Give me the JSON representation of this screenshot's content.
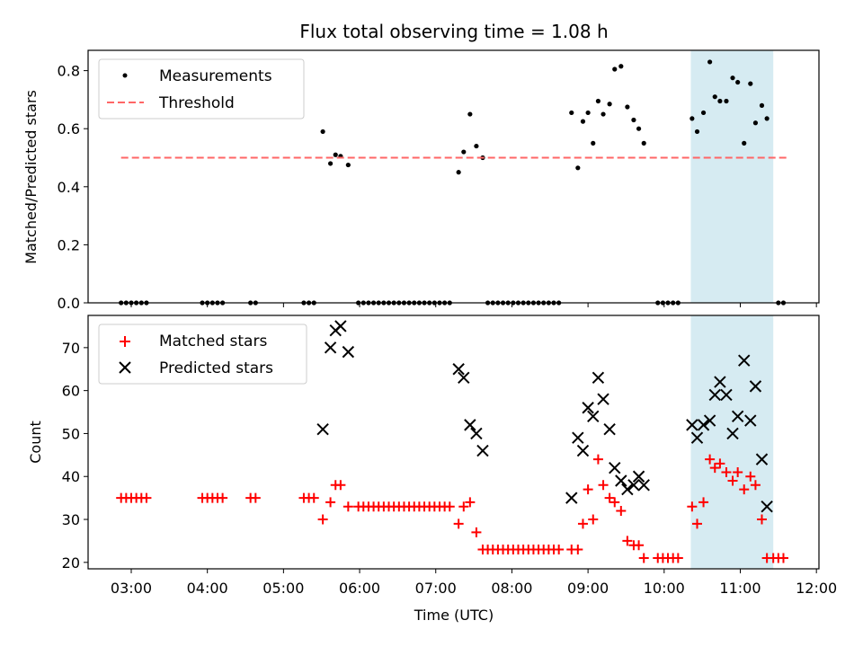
{
  "chart_data": [
    {
      "type": "scatter",
      "title": "Flux total observing time = 1.08 h",
      "xlabel": "",
      "ylabel": "Matched/Predicted stars",
      "xlim": [
        "02:26",
        "12:02"
      ],
      "ylim": [
        0,
        0.87
      ],
      "xticks": [
        "03:00",
        "04:00",
        "05:00",
        "06:00",
        "07:00",
        "08:00",
        "09:00",
        "10:00",
        "11:00",
        "12:00"
      ],
      "yticks": [
        "0.0",
        "0.2",
        "0.4",
        "0.6",
        "0.8"
      ],
      "legend": "upper-left",
      "highlight_span": [
        "10:21",
        "11:26"
      ],
      "highlight_color": "#add8e6",
      "series": [
        {
          "name": "Measurements",
          "marker": "dot",
          "color": "#000000",
          "points": [
            [
              "02:52",
              0
            ],
            [
              "02:56",
              0
            ],
            [
              "03:00",
              0
            ],
            [
              "03:04",
              0
            ],
            [
              "03:08",
              0
            ],
            [
              "03:12",
              0
            ],
            [
              "03:56",
              0
            ],
            [
              "04:00",
              0
            ],
            [
              "04:04",
              0
            ],
            [
              "04:08",
              0
            ],
            [
              "04:12",
              0
            ],
            [
              "04:34",
              0
            ],
            [
              "04:38",
              0
            ],
            [
              "05:16",
              0
            ],
            [
              "05:20",
              0
            ],
            [
              "05:24",
              0
            ],
            [
              "05:31",
              0.59
            ],
            [
              "05:37",
              0.48
            ],
            [
              "05:41",
              0.51
            ],
            [
              "05:45",
              0.505
            ],
            [
              "05:51",
              0.475
            ],
            [
              "05:59",
              0
            ],
            [
              "06:03",
              0
            ],
            [
              "06:07",
              0
            ],
            [
              "06:11",
              0
            ],
            [
              "06:15",
              0
            ],
            [
              "06:19",
              0
            ],
            [
              "06:23",
              0
            ],
            [
              "06:27",
              0
            ],
            [
              "06:31",
              0
            ],
            [
              "06:35",
              0
            ],
            [
              "06:39",
              0
            ],
            [
              "06:43",
              0
            ],
            [
              "06:47",
              0
            ],
            [
              "06:51",
              0
            ],
            [
              "06:55",
              0
            ],
            [
              "06:59",
              0
            ],
            [
              "07:03",
              0
            ],
            [
              "07:07",
              0
            ],
            [
              "07:11",
              0
            ],
            [
              "07:18",
              0.45
            ],
            [
              "07:22",
              0.52
            ],
            [
              "07:27",
              0.65
            ],
            [
              "07:32",
              0.54
            ],
            [
              "07:37",
              0.5
            ],
            [
              "07:41",
              0
            ],
            [
              "07:45",
              0
            ],
            [
              "07:49",
              0
            ],
            [
              "07:53",
              0
            ],
            [
              "07:57",
              0
            ],
            [
              "08:01",
              0
            ],
            [
              "08:05",
              0
            ],
            [
              "08:09",
              0
            ],
            [
              "08:13",
              0
            ],
            [
              "08:17",
              0
            ],
            [
              "08:21",
              0
            ],
            [
              "08:25",
              0
            ],
            [
              "08:29",
              0
            ],
            [
              "08:33",
              0
            ],
            [
              "08:37",
              0
            ],
            [
              "08:47",
              0.655
            ],
            [
              "08:52",
              0.465
            ],
            [
              "08:56",
              0.625
            ],
            [
              "09:00",
              0.655
            ],
            [
              "09:04",
              0.55
            ],
            [
              "09:08",
              0.695
            ],
            [
              "09:12",
              0.65
            ],
            [
              "09:17",
              0.685
            ],
            [
              "09:21",
              0.805
            ],
            [
              "09:26",
              0.815
            ],
            [
              "09:31",
              0.675
            ],
            [
              "09:36",
              0.63
            ],
            [
              "09:40",
              0.6
            ],
            [
              "09:44",
              0.55
            ],
            [
              "09:55",
              0
            ],
            [
              "09:59",
              0
            ],
            [
              "10:03",
              0
            ],
            [
              "10:07",
              0
            ],
            [
              "10:11",
              0
            ],
            [
              "10:22",
              0.635
            ],
            [
              "10:26",
              0.59
            ],
            [
              "10:31",
              0.655
            ],
            [
              "10:36",
              0.83
            ],
            [
              "10:40",
              0.71
            ],
            [
              "10:44",
              0.695
            ],
            [
              "10:49",
              0.695
            ],
            [
              "10:54",
              0.775
            ],
            [
              "10:58",
              0.76
            ],
            [
              "11:03",
              0.55
            ],
            [
              "11:08",
              0.755
            ],
            [
              "11:12",
              0.62
            ],
            [
              "11:17",
              0.68
            ],
            [
              "11:21",
              0.635
            ],
            [
              "11:30",
              0
            ],
            [
              "11:34",
              0
            ]
          ]
        },
        {
          "name": "Threshold",
          "style": "dashed",
          "color": "#ff6666",
          "points": [
            [
              "02:52",
              0.5
            ],
            [
              "11:38",
              0.5
            ]
          ]
        }
      ]
    },
    {
      "type": "scatter",
      "title": "",
      "xlabel": "Time (UTC)",
      "ylabel": "Count",
      "xlim": [
        "02:26",
        "12:02"
      ],
      "ylim": [
        18.5,
        77.5
      ],
      "xticks": [
        "03:00",
        "04:00",
        "05:00",
        "06:00",
        "07:00",
        "08:00",
        "09:00",
        "10:00",
        "11:00",
        "12:00"
      ],
      "yticks": [
        "20",
        "30",
        "40",
        "50",
        "60",
        "70"
      ],
      "legend": "upper-left",
      "highlight_span": [
        "10:21",
        "11:26"
      ],
      "highlight_color": "#add8e6",
      "series": [
        {
          "name": "Matched stars",
          "marker": "plus",
          "color": "#ff0000",
          "points": [
            [
              "02:52",
              35
            ],
            [
              "02:56",
              35
            ],
            [
              "03:00",
              35
            ],
            [
              "03:04",
              35
            ],
            [
              "03:08",
              35
            ],
            [
              "03:12",
              35
            ],
            [
              "03:56",
              35
            ],
            [
              "04:00",
              35
            ],
            [
              "04:04",
              35
            ],
            [
              "04:08",
              35
            ],
            [
              "04:12",
              35
            ],
            [
              "04:34",
              35
            ],
            [
              "04:38",
              35
            ],
            [
              "05:16",
              35
            ],
            [
              "05:20",
              35
            ],
            [
              "05:24",
              35
            ],
            [
              "05:31",
              30
            ],
            [
              "05:37",
              34
            ],
            [
              "05:41",
              38
            ],
            [
              "05:45",
              38
            ],
            [
              "05:51",
              33
            ],
            [
              "05:59",
              33
            ],
            [
              "06:03",
              33
            ],
            [
              "06:07",
              33
            ],
            [
              "06:11",
              33
            ],
            [
              "06:15",
              33
            ],
            [
              "06:19",
              33
            ],
            [
              "06:23",
              33
            ],
            [
              "06:27",
              33
            ],
            [
              "06:31",
              33
            ],
            [
              "06:35",
              33
            ],
            [
              "06:39",
              33
            ],
            [
              "06:43",
              33
            ],
            [
              "06:47",
              33
            ],
            [
              "06:51",
              33
            ],
            [
              "06:55",
              33
            ],
            [
              "06:59",
              33
            ],
            [
              "07:03",
              33
            ],
            [
              "07:07",
              33
            ],
            [
              "07:11",
              33
            ],
            [
              "07:18",
              29
            ],
            [
              "07:22",
              33
            ],
            [
              "07:27",
              34
            ],
            [
              "07:32",
              27
            ],
            [
              "07:37",
              23
            ],
            [
              "07:41",
              23
            ],
            [
              "07:45",
              23
            ],
            [
              "07:49",
              23
            ],
            [
              "07:53",
              23
            ],
            [
              "07:57",
              23
            ],
            [
              "08:01",
              23
            ],
            [
              "08:05",
              23
            ],
            [
              "08:09",
              23
            ],
            [
              "08:13",
              23
            ],
            [
              "08:17",
              23
            ],
            [
              "08:21",
              23
            ],
            [
              "08:25",
              23
            ],
            [
              "08:29",
              23
            ],
            [
              "08:33",
              23
            ],
            [
              "08:37",
              23
            ],
            [
              "08:47",
              23
            ],
            [
              "08:52",
              23
            ],
            [
              "08:56",
              29
            ],
            [
              "09:00",
              37
            ],
            [
              "09:04",
              30
            ],
            [
              "09:08",
              44
            ],
            [
              "09:12",
              38
            ],
            [
              "09:17",
              35
            ],
            [
              "09:21",
              34
            ],
            [
              "09:26",
              32
            ],
            [
              "09:31",
              25
            ],
            [
              "09:36",
              24
            ],
            [
              "09:40",
              24
            ],
            [
              "09:44",
              21
            ],
            [
              "09:55",
              21
            ],
            [
              "09:59",
              21
            ],
            [
              "10:03",
              21
            ],
            [
              "10:07",
              21
            ],
            [
              "10:11",
              21
            ],
            [
              "10:22",
              33
            ],
            [
              "10:26",
              29
            ],
            [
              "10:31",
              34
            ],
            [
              "10:36",
              44
            ],
            [
              "10:40",
              42
            ],
            [
              "10:44",
              43
            ],
            [
              "10:49",
              41
            ],
            [
              "10:54",
              39
            ],
            [
              "10:58",
              41
            ],
            [
              "11:03",
              37
            ],
            [
              "11:08",
              40
            ],
            [
              "11:12",
              38
            ],
            [
              "11:17",
              30
            ],
            [
              "11:21",
              21
            ],
            [
              "11:26",
              21
            ],
            [
              "11:30",
              21
            ],
            [
              "11:34",
              21
            ]
          ]
        },
        {
          "name": "Predicted stars",
          "marker": "x",
          "color": "#000000",
          "points": [
            [
              "05:31",
              51
            ],
            [
              "05:37",
              70
            ],
            [
              "05:41",
              74
            ],
            [
              "05:45",
              75
            ],
            [
              "05:51",
              69
            ],
            [
              "07:18",
              65
            ],
            [
              "07:22",
              63
            ],
            [
              "07:27",
              52
            ],
            [
              "07:32",
              50
            ],
            [
              "07:37",
              46
            ],
            [
              "08:47",
              35
            ],
            [
              "08:52",
              49
            ],
            [
              "08:56",
              46
            ],
            [
              "09:00",
              56
            ],
            [
              "09:04",
              54
            ],
            [
              "09:08",
              63
            ],
            [
              "09:12",
              58
            ],
            [
              "09:17",
              51
            ],
            [
              "09:21",
              42
            ],
            [
              "09:26",
              39
            ],
            [
              "09:31",
              37
            ],
            [
              "09:36",
              38
            ],
            [
              "09:40",
              40
            ],
            [
              "09:44",
              38
            ],
            [
              "10:22",
              52
            ],
            [
              "10:26",
              49
            ],
            [
              "10:31",
              52
            ],
            [
              "10:36",
              53
            ],
            [
              "10:40",
              59
            ],
            [
              "10:44",
              62
            ],
            [
              "10:49",
              59
            ],
            [
              "10:54",
              50
            ],
            [
              "10:58",
              54
            ],
            [
              "11:03",
              67
            ],
            [
              "11:08",
              53
            ],
            [
              "11:12",
              61
            ],
            [
              "11:17",
              44
            ],
            [
              "11:21",
              33
            ]
          ]
        }
      ]
    }
  ]
}
